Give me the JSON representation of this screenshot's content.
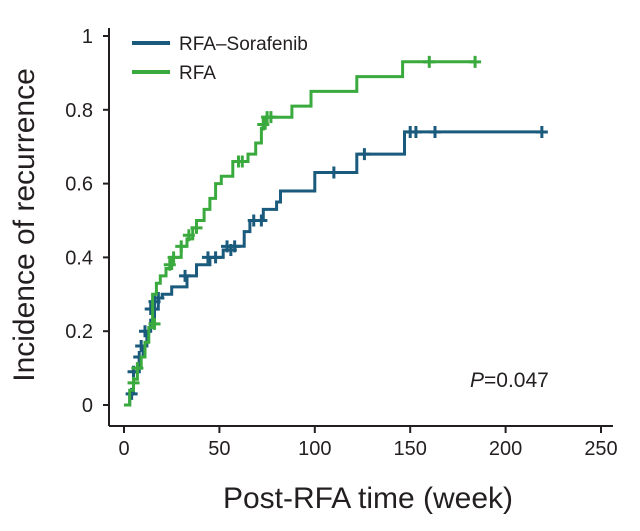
{
  "chart_data": {
    "type": "line",
    "step": true,
    "xlabel": "Post-RFA time (week)",
    "ylabel": "Incidence of recurrence",
    "xlim": [
      0,
      250
    ],
    "ylim": [
      0,
      1
    ],
    "xticks": [
      0,
      50,
      100,
      150,
      200,
      250
    ],
    "yticks": [
      0,
      0.2,
      0.4,
      0.6,
      0.8,
      1
    ],
    "ytick_labels": [
      "0",
      "0.2",
      "0.4",
      "0.6",
      "0.8",
      "1"
    ],
    "grid": false,
    "legend_position": "top-left",
    "annotation": {
      "italic": "P",
      "text": "=0.047"
    },
    "series": [
      {
        "name": "RFA–Sorafenib",
        "color": "#1a5a7c",
        "steps": [
          [
            0,
            0
          ],
          [
            3,
            0.03
          ],
          [
            5,
            0.09
          ],
          [
            8,
            0.13
          ],
          [
            10,
            0.16
          ],
          [
            12,
            0.2
          ],
          [
            14,
            0.23
          ],
          [
            16,
            0.26
          ],
          [
            18,
            0.29
          ],
          [
            20,
            0.3
          ],
          [
            25,
            0.32
          ],
          [
            33,
            0.35
          ],
          [
            38,
            0.38
          ],
          [
            45,
            0.4
          ],
          [
            52,
            0.42
          ],
          [
            56,
            0.43
          ],
          [
            63,
            0.47
          ],
          [
            66,
            0.5
          ],
          [
            73,
            0.53
          ],
          [
            80,
            0.55
          ],
          [
            82,
            0.58
          ],
          [
            100,
            0.63
          ],
          [
            122,
            0.68
          ],
          [
            147,
            0.74
          ],
          [
            220,
            0.74
          ]
        ],
        "censor": [
          [
            4,
            0.03
          ],
          [
            5,
            0.09
          ],
          [
            8,
            0.13
          ],
          [
            9,
            0.16
          ],
          [
            11,
            0.2
          ],
          [
            14,
            0.26
          ],
          [
            16,
            0.28
          ],
          [
            18,
            0.29
          ],
          [
            32,
            0.35
          ],
          [
            44,
            0.4
          ],
          [
            48,
            0.4
          ],
          [
            54,
            0.43
          ],
          [
            56,
            0.42
          ],
          [
            58,
            0.43
          ],
          [
            68,
            0.5
          ],
          [
            72,
            0.5
          ],
          [
            110,
            0.63
          ],
          [
            126,
            0.68
          ],
          [
            150,
            0.74
          ],
          [
            153,
            0.74
          ],
          [
            163,
            0.74
          ],
          [
            219,
            0.74
          ]
        ]
      },
      {
        "name": "RFA",
        "color": "#3aaa3e",
        "steps": [
          [
            0,
            0
          ],
          [
            3,
            0.04
          ],
          [
            5,
            0.07
          ],
          [
            7,
            0.1
          ],
          [
            9,
            0.13
          ],
          [
            11,
            0.17
          ],
          [
            13,
            0.21
          ],
          [
            15,
            0.3
          ],
          [
            17,
            0.33
          ],
          [
            19,
            0.35
          ],
          [
            22,
            0.37
          ],
          [
            25,
            0.4
          ],
          [
            30,
            0.43
          ],
          [
            33,
            0.45
          ],
          [
            36,
            0.48
          ],
          [
            38,
            0.5
          ],
          [
            42,
            0.53
          ],
          [
            45,
            0.56
          ],
          [
            48,
            0.6
          ],
          [
            51,
            0.62
          ],
          [
            57,
            0.66
          ],
          [
            65,
            0.68
          ],
          [
            69,
            0.71
          ],
          [
            72,
            0.75
          ],
          [
            74,
            0.78
          ],
          [
            88,
            0.81
          ],
          [
            98,
            0.85
          ],
          [
            122,
            0.89
          ],
          [
            146,
            0.93
          ],
          [
            184,
            0.93
          ]
        ],
        "censor": [
          [
            5,
            0.06
          ],
          [
            7,
            0.1
          ],
          [
            16,
            0.22
          ],
          [
            24,
            0.38
          ],
          [
            26,
            0.4
          ],
          [
            30,
            0.43
          ],
          [
            34,
            0.46
          ],
          [
            38,
            0.48
          ],
          [
            60,
            0.66
          ],
          [
            62,
            0.66
          ],
          [
            73,
            0.76
          ],
          [
            75,
            0.78
          ],
          [
            77,
            0.78
          ],
          [
            160,
            0.93
          ],
          [
            184,
            0.93
          ]
        ]
      }
    ]
  }
}
